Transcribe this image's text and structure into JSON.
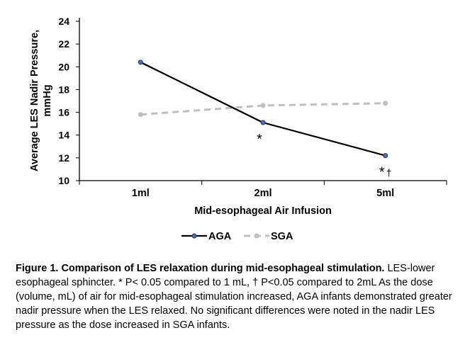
{
  "chart_data": {
    "type": "line",
    "categories": [
      "1ml",
      "2ml",
      "5ml"
    ],
    "series": [
      {
        "name": "AGA",
        "values": [
          20.4,
          15.1,
          12.2
        ],
        "color": "#000000",
        "marker_color": "#4472C4",
        "style": "solid"
      },
      {
        "name": "SGA",
        "values": [
          15.8,
          16.6,
          16.8
        ],
        "color": "#BFBFBF",
        "marker_color": "#BFBFBF",
        "style": "dashed"
      }
    ],
    "ylim": [
      10,
      24
    ],
    "yticks": [
      "10",
      "12",
      "14",
      "16",
      "18",
      "20",
      "22",
      "24"
    ],
    "ylabel": "Average LES Nadir Pressure, mmHg",
    "xlabel": "Mid-esophageal Air Infusion",
    "grid": false,
    "legend": "bottom",
    "annotations": [
      {
        "category": "2ml",
        "text": "*"
      },
      {
        "category": "5ml",
        "text": "*",
        "dagger": "†"
      }
    ]
  },
  "caption": {
    "title": "Figure 1. Comparison of LES relaxation during mid-esophageal stimulation.",
    "body": " LES-lower esophageal sphincter. * P< 0.05 compared to 1 mL, † P<0.05 compared to 2mL As the dose (volume, mL) of air for mid-esophageal stimulation increased, AGA infants demonstrated greater nadir pressure when the LES relaxed. No significant differences were noted in the nadir LES pressure as the dose increased in SGA infants."
  }
}
